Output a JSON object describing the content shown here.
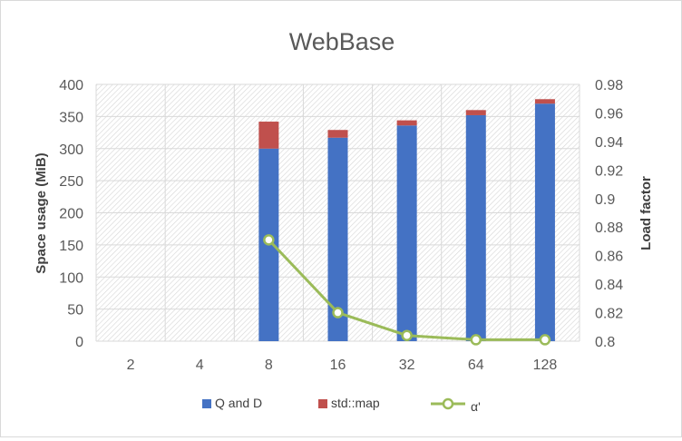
{
  "chart_data": {
    "type": "bar",
    "title": "WebBase",
    "categories": [
      "2",
      "4",
      "8",
      "16",
      "32",
      "64",
      "128"
    ],
    "stacked": true,
    "series": [
      {
        "name": "Q and D",
        "axis": "left",
        "kind": "bar",
        "color": "#4472c4",
        "values": [
          null,
          null,
          300,
          317,
          336,
          352,
          370
        ]
      },
      {
        "name": "std::map",
        "axis": "left",
        "kind": "bar",
        "color": "#c0504d",
        "values": [
          null,
          null,
          42,
          12,
          8,
          8,
          7
        ]
      },
      {
        "name": "α'",
        "axis": "right",
        "kind": "line",
        "color": "#9bbb59",
        "values": [
          null,
          null,
          0.871,
          0.82,
          0.804,
          0.801,
          0.801
        ]
      }
    ],
    "ylabel": "Space usage (MiB)",
    "y2label": "Load factor",
    "ylim": [
      0,
      400
    ],
    "y2lim": [
      0.8,
      0.98
    ],
    "yticks": [
      "0",
      "50",
      "100",
      "150",
      "200",
      "250",
      "300",
      "350",
      "400"
    ],
    "y2ticks": [
      "0.8",
      "0.82",
      "0.84",
      "0.86",
      "0.88",
      "0.9",
      "0.92",
      "0.94",
      "0.96",
      "0.98"
    ],
    "grid": true,
    "legend": "bottom",
    "plot_background": "hatched"
  }
}
